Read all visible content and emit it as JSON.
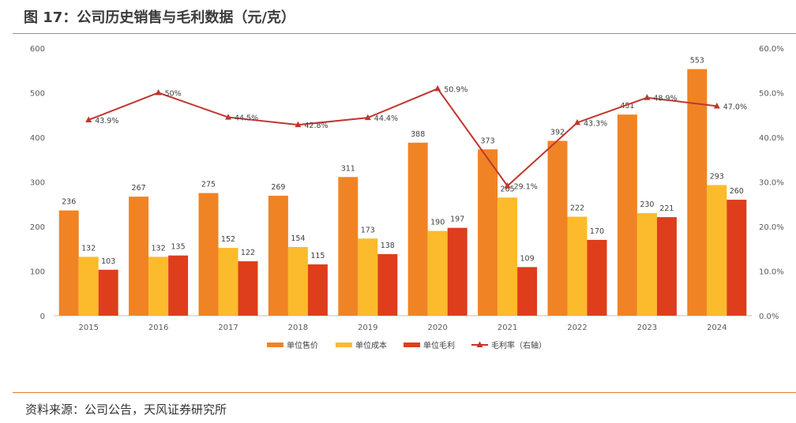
{
  "title": "图 17：公司历史销售与毛利数据（元/克）",
  "source": "资料来源：公司公告，天风证券研究所",
  "colors": {
    "rule": "#e07c2a",
    "price": "#f08424",
    "cost": "#fcbb2c",
    "margin": "#de3e1c",
    "rate": "#c0362e"
  },
  "chart_data": {
    "type": "bar",
    "categories": [
      "2015",
      "2016",
      "2017",
      "2018",
      "2019",
      "2020",
      "2021",
      "2022",
      "2023",
      "2024"
    ],
    "series": [
      {
        "name": "单位售价",
        "values": [
          236,
          267,
          275,
          269,
          311,
          388,
          373,
          392,
          451,
          553
        ]
      },
      {
        "name": "单位成本",
        "values": [
          132,
          132,
          152,
          154,
          173,
          190,
          265,
          222,
          230,
          293
        ]
      },
      {
        "name": "单位毛利",
        "values": [
          103,
          135,
          122,
          115,
          138,
          197,
          109,
          170,
          221,
          260
        ]
      }
    ],
    "line_series": {
      "name": "毛利率（右轴）",
      "values": [
        43.9,
        50.0,
        44.5,
        42.8,
        44.4,
        50.9,
        29.1,
        43.3,
        48.9,
        47.0
      ],
      "labels": [
        "43.9%",
        "50%",
        "44.5%",
        "42.8%",
        "44.4%",
        "50.9%",
        "29.1%",
        "43.3%",
        "48.9%",
        "47.0%"
      ]
    },
    "ylim": [
      0,
      600
    ],
    "yticks": [
      "0",
      "100",
      "200",
      "300",
      "400",
      "500",
      "600"
    ],
    "y2lim": [
      0,
      60
    ],
    "y2ticks": [
      "0.0%",
      "10.0%",
      "20.0%",
      "30.0%",
      "40.0%",
      "50.0%",
      "60.0%"
    ],
    "legend": [
      "单位售价",
      "单位成本",
      "单位毛利",
      "毛利率（右轴）"
    ],
    "legend_position": "bottom"
  }
}
